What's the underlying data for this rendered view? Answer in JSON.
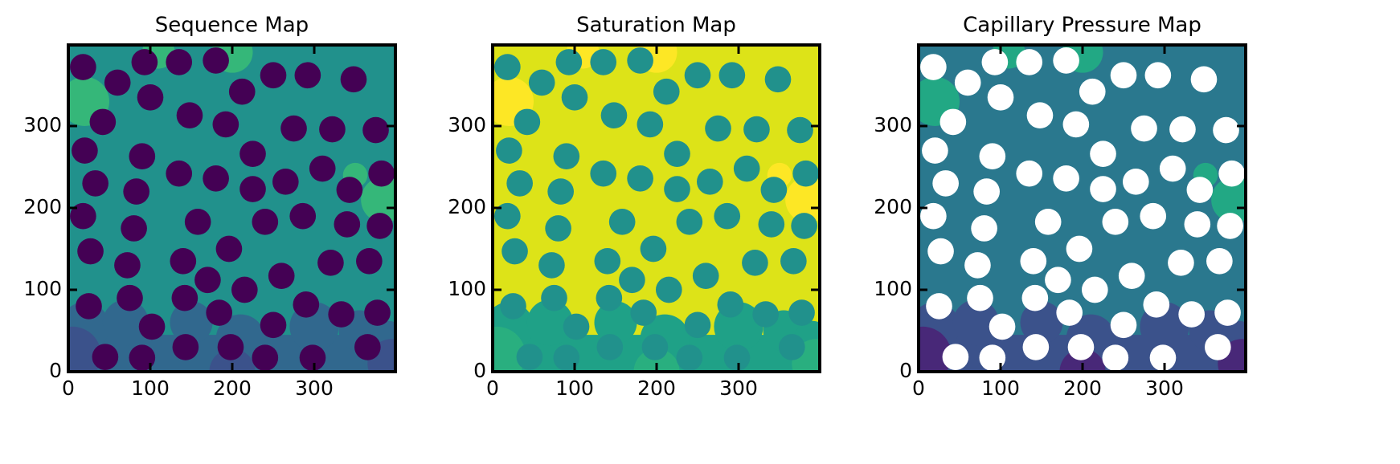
{
  "chart_data": [
    {
      "type": "image",
      "title": "Sequence Map",
      "xlim": [
        0,
        399
      ],
      "ylim": [
        0,
        399
      ],
      "xticks": [
        0,
        100,
        200,
        300
      ],
      "yticks": [
        0,
        100,
        200,
        300
      ],
      "colors": {
        "background": "#21918c",
        "grain": "#440154",
        "bottom": "#31688e",
        "bottom_patch": "#3b528b",
        "upper_patch": "#35b779"
      }
    },
    {
      "type": "image",
      "title": "Saturation Map",
      "xlim": [
        0,
        399
      ],
      "ylim": [
        0,
        399
      ],
      "xticks": [
        0,
        100,
        200,
        300
      ],
      "yticks": [
        0,
        100,
        200,
        300
      ],
      "colors": {
        "background": "#dde318",
        "grain": "#21918c",
        "bottom": "#1fa187",
        "bottom_patch": "#29af7f",
        "upper_patch": "#fde725"
      }
    },
    {
      "type": "image",
      "title": "Capillary Pressure Map",
      "xlim": [
        0,
        399
      ],
      "ylim": [
        0,
        399
      ],
      "xticks": [
        0,
        100,
        200,
        300
      ],
      "yticks": [
        0,
        100,
        200,
        300
      ],
      "colors": {
        "background": "#2a788e",
        "grain": "#ffffff",
        "bottom": "#3b528b",
        "bottom_patch": "#482878",
        "upper_patch": "#22a884"
      }
    }
  ]
}
